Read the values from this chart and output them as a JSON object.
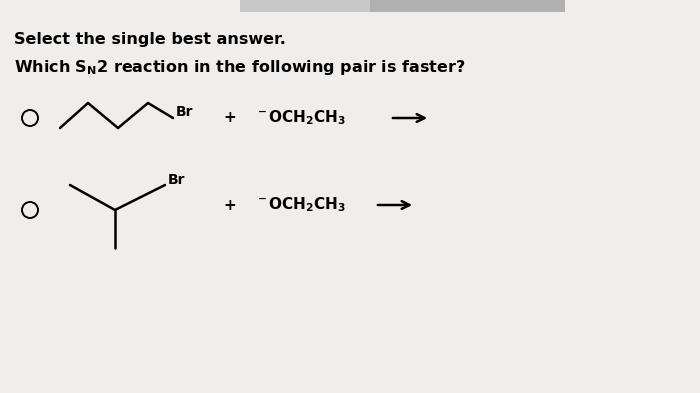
{
  "background_color": "#f0eeec",
  "text_color": "#000000",
  "font_size_title": 11.5,
  "br_label": "Br",
  "top_bar_color": "#b8b8b8",
  "top_bar_color2": "#d0d0d0"
}
